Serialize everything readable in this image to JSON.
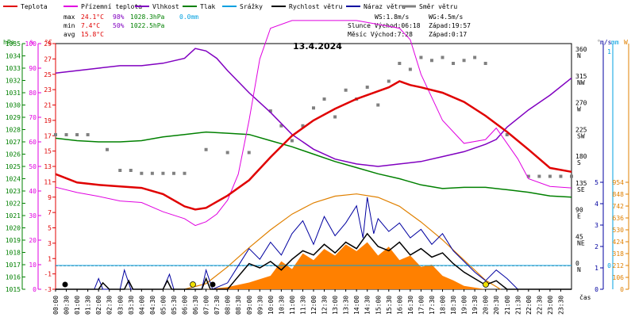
{
  "chart_data": {
    "type": "line",
    "date": "13.4.2024",
    "legend": [
      {
        "label": "Teplota",
        "color": "#e00000"
      },
      {
        "label": "Přízemní teplota",
        "color": "#e000e0"
      },
      {
        "label": "Vlhkost",
        "color": "#8000c0"
      },
      {
        "label": "Tlak",
        "color": "#008000"
      },
      {
        "label": "Srážky",
        "color": "#00a0e0"
      },
      {
        "label": "Rychlost větru",
        "color": "#000000"
      },
      {
        "label": "Náraz větru",
        "color": "#0000a0"
      },
      {
        "label": "Směr větru",
        "color": "#808080"
      }
    ],
    "stats": {
      "max_label": "max",
      "min_label": "min",
      "avg_label": "avg",
      "max_temp": "24.1°C",
      "max_hum": "98%",
      "max_press": "1028.3hPa",
      "max_rain": "0.0mm",
      "min_temp": "7.4°C",
      "min_hum": "50%",
      "min_press": "1022.5hPa",
      "avg_temp": "15.8°C"
    },
    "wind_info": {
      "ws": "WS:1.8m/s",
      "wg": "WG:4.5m/s"
    },
    "sun": {
      "rise": "Slunce Východ:06:18",
      "set": "Západ:19:57"
    },
    "moon": {
      "rise": "Měsíc  Východ:7:28",
      "set": "Západ:0:17"
    },
    "axes": {
      "hpa_unit": "hPa",
      "pct_unit": "%",
      "c_unit": "°C",
      "deg_unit": "°",
      "ms_unit": "m/s",
      "mm_unit": "mm",
      "w_unit": "W",
      "time_label": "čas",
      "hpa_ticks": [
        1015,
        1016,
        1017,
        1018,
        1019,
        1020,
        1021,
        1022,
        1023,
        1024,
        1025,
        1026,
        1027,
        1028,
        1029,
        1030,
        1031,
        1032,
        1033,
        1034,
        1035
      ],
      "pct_ticks": [
        0,
        10,
        20,
        30,
        40,
        50,
        60,
        70,
        80,
        90,
        100
      ],
      "c_ticks": [
        -3,
        -1,
        1,
        3,
        5,
        7,
        9,
        11,
        13,
        15,
        17,
        19,
        21,
        23,
        25,
        27,
        29
      ],
      "dir_ticks": [
        {
          "deg": 0,
          "label": "N"
        },
        {
          "deg": 45,
          "label": "NE"
        },
        {
          "deg": 90,
          "label": "E"
        },
        {
          "deg": 135,
          "label": "SE"
        },
        {
          "deg": 180,
          "label": "S"
        },
        {
          "deg": 225,
          "label": "SW"
        },
        {
          "deg": 270,
          "label": "W"
        },
        {
          "deg": 315,
          "label": "NW"
        },
        {
          "deg": 360,
          "label": "N"
        }
      ],
      "ms_ticks": [
        0,
        1,
        2,
        3,
        4,
        5
      ],
      "mm_ticks": [
        0,
        1
      ],
      "w_ticks": [
        0,
        106,
        212,
        318,
        424,
        530,
        636,
        742,
        848,
        954
      ],
      "time_ticks": [
        "00:00",
        "00:30",
        "01:00",
        "01:30",
        "02:00",
        "02:30",
        "03:00",
        "03:30",
        "04:00",
        "04:30",
        "05:00",
        "05:30",
        "06:00",
        "06:30",
        "07:00",
        "07:30",
        "08:00",
        "08:30",
        "09:00",
        "09:30",
        "10:00",
        "10:30",
        "11:00",
        "11:30",
        "12:00",
        "12:30",
        "13:00",
        "13:30",
        "14:00",
        "14:30",
        "15:00",
        "15:30",
        "16:00",
        "16:30",
        "17:00",
        "17:30",
        "18:00",
        "18:30",
        "19:00",
        "19:30",
        "20:00",
        "20:30",
        "21:00",
        "21:30",
        "22:00",
        "22:30",
        "23:00",
        "23:30"
      ]
    },
    "ranges": {
      "hpa": [
        1015,
        1035
      ],
      "pct": [
        0,
        100
      ],
      "c": [
        -3,
        29
      ],
      "deg": [
        0,
        360
      ],
      "ms": [
        0,
        5
      ],
      "w": [
        0,
        954
      ],
      "hours": [
        0,
        24
      ]
    },
    "series": {
      "temperature_c": [
        [
          0,
          12
        ],
        [
          1,
          10.9
        ],
        [
          2,
          10.6
        ],
        [
          3,
          10.4
        ],
        [
          4,
          10.2
        ],
        [
          5,
          9.4
        ],
        [
          6,
          7.8
        ],
        [
          6.5,
          7.4
        ],
        [
          7,
          7.6
        ],
        [
          7.5,
          8.4
        ],
        [
          8,
          9.2
        ],
        [
          9,
          11.2
        ],
        [
          10,
          14.2
        ],
        [
          11,
          17
        ],
        [
          12,
          19
        ],
        [
          13,
          20.5
        ],
        [
          14,
          21.8
        ],
        [
          15,
          22.8
        ],
        [
          15.5,
          23.3
        ],
        [
          16,
          24.1
        ],
        [
          16.5,
          23.6
        ],
        [
          17,
          23.3
        ],
        [
          18,
          22.6
        ],
        [
          19,
          21.4
        ],
        [
          20,
          19.6
        ],
        [
          21,
          17.5
        ],
        [
          22,
          15.2
        ],
        [
          23,
          12.8
        ],
        [
          24,
          12.3
        ]
      ],
      "ground_temperature_c": [
        [
          0,
          10.3
        ],
        [
          1,
          9.6
        ],
        [
          2,
          9.1
        ],
        [
          3,
          8.5
        ],
        [
          4,
          8.3
        ],
        [
          5,
          7.1
        ],
        [
          6,
          6.2
        ],
        [
          6.5,
          5.3
        ],
        [
          7,
          5.8
        ],
        [
          7.5,
          6.8
        ],
        [
          8,
          8.6
        ],
        [
          8.5,
          12
        ],
        [
          9,
          19
        ],
        [
          9.5,
          27
        ],
        [
          10,
          31
        ],
        [
          11,
          32
        ],
        [
          12,
          32
        ],
        [
          13,
          32
        ],
        [
          14,
          32
        ],
        [
          15,
          31.5
        ],
        [
          16,
          31
        ],
        [
          16.5,
          29.5
        ],
        [
          17,
          25
        ],
        [
          18,
          19
        ],
        [
          19,
          16
        ],
        [
          20,
          16.5
        ],
        [
          20.5,
          18
        ],
        [
          21,
          16
        ],
        [
          21.5,
          14
        ],
        [
          22,
          11.4
        ],
        [
          23,
          10.4
        ],
        [
          24,
          10.2
        ]
      ],
      "humidity_pct": [
        [
          0,
          88
        ],
        [
          1,
          89
        ],
        [
          2,
          90
        ],
        [
          3,
          91
        ],
        [
          4,
          91
        ],
        [
          5,
          92
        ],
        [
          6,
          94
        ],
        [
          6.5,
          98
        ],
        [
          7,
          97
        ],
        [
          7.5,
          94
        ],
        [
          8,
          89
        ],
        [
          9,
          80
        ],
        [
          10,
          72
        ],
        [
          11,
          63
        ],
        [
          12,
          57
        ],
        [
          13,
          53
        ],
        [
          14,
          51
        ],
        [
          15,
          50
        ],
        [
          16,
          51
        ],
        [
          17,
          52
        ],
        [
          18,
          54
        ],
        [
          19,
          56
        ],
        [
          20,
          59
        ],
        [
          20.5,
          61
        ],
        [
          21,
          66
        ],
        [
          22,
          73
        ],
        [
          23,
          79
        ],
        [
          24,
          86
        ]
      ],
      "pressure_hpa": [
        [
          0,
          1027.3
        ],
        [
          1,
          1027.1
        ],
        [
          2,
          1027
        ],
        [
          3,
          1027
        ],
        [
          4,
          1027.1
        ],
        [
          5,
          1027.4
        ],
        [
          6,
          1027.6
        ],
        [
          7,
          1027.8
        ],
        [
          8,
          1027.7
        ],
        [
          9,
          1027.6
        ],
        [
          10,
          1027.1
        ],
        [
          11,
          1026.6
        ],
        [
          12,
          1026
        ],
        [
          13,
          1025.4
        ],
        [
          14,
          1024.9
        ],
        [
          15,
          1024.4
        ],
        [
          16,
          1024
        ],
        [
          17,
          1023.5
        ],
        [
          18,
          1023.2
        ],
        [
          19,
          1023.3
        ],
        [
          20,
          1023.3
        ],
        [
          21,
          1023.1
        ],
        [
          22,
          1022.9
        ],
        [
          23,
          1022.6
        ],
        [
          24,
          1022.5
        ]
      ],
      "rain_mm": [
        [
          0,
          0
        ],
        [
          24,
          0
        ]
      ],
      "wind_speed_ms": [
        [
          0,
          0
        ],
        [
          2,
          0
        ],
        [
          2.2,
          0.3
        ],
        [
          2.5,
          0
        ],
        [
          3.2,
          0
        ],
        [
          3.4,
          0.4
        ],
        [
          3.6,
          0
        ],
        [
          5,
          0
        ],
        [
          5.2,
          0.4
        ],
        [
          5.4,
          0
        ],
        [
          6.8,
          0
        ],
        [
          7,
          0.5
        ],
        [
          7.2,
          0
        ],
        [
          8,
          0
        ],
        [
          8.5,
          0.6
        ],
        [
          9,
          1.2
        ],
        [
          9.5,
          1
        ],
        [
          10,
          1.3
        ],
        [
          10.5,
          0.9
        ],
        [
          11,
          1.4
        ],
        [
          11.5,
          1.8
        ],
        [
          12,
          1.6
        ],
        [
          12.5,
          2.1
        ],
        [
          13,
          1.7
        ],
        [
          13.5,
          2.2
        ],
        [
          14,
          1.9
        ],
        [
          14.5,
          2.6
        ],
        [
          15,
          2
        ],
        [
          15.5,
          1.8
        ],
        [
          16,
          2.2
        ],
        [
          16.5,
          1.6
        ],
        [
          17,
          1.9
        ],
        [
          17.5,
          1.5
        ],
        [
          18,
          1.7
        ],
        [
          18.5,
          1.2
        ],
        [
          19,
          0.8
        ],
        [
          19.5,
          0.5
        ],
        [
          20,
          0.2
        ],
        [
          20.5,
          0.4
        ],
        [
          21,
          0
        ],
        [
          24,
          0
        ]
      ],
      "wind_gust_ms": [
        [
          0,
          0
        ],
        [
          1.8,
          0
        ],
        [
          2,
          0.5
        ],
        [
          2.2,
          0
        ],
        [
          3,
          0
        ],
        [
          3.2,
          0.9
        ],
        [
          3.5,
          0
        ],
        [
          5,
          0
        ],
        [
          5.3,
          0.7
        ],
        [
          5.5,
          0
        ],
        [
          6.8,
          0
        ],
        [
          7,
          0.9
        ],
        [
          7.3,
          0
        ],
        [
          8,
          0.3
        ],
        [
          8.5,
          1.1
        ],
        [
          9,
          1.9
        ],
        [
          9.5,
          1.4
        ],
        [
          10,
          2.2
        ],
        [
          10.5,
          1.6
        ],
        [
          11,
          2.6
        ],
        [
          11.5,
          3.2
        ],
        [
          12,
          2.1
        ],
        [
          12.5,
          3.4
        ],
        [
          13,
          2.5
        ],
        [
          13.5,
          3.1
        ],
        [
          14,
          3.9
        ],
        [
          14.3,
          2.4
        ],
        [
          14.5,
          4.3
        ],
        [
          14.8,
          2.6
        ],
        [
          15,
          3.3
        ],
        [
          15.5,
          2.7
        ],
        [
          16,
          3.1
        ],
        [
          16.5,
          2.4
        ],
        [
          17,
          2.8
        ],
        [
          17.5,
          2.1
        ],
        [
          18,
          2.6
        ],
        [
          18.5,
          1.8
        ],
        [
          19,
          1.3
        ],
        [
          19.5,
          0.8
        ],
        [
          20,
          0.4
        ],
        [
          20.5,
          0.9
        ],
        [
          21,
          0.5
        ],
        [
          21.5,
          0
        ],
        [
          24,
          0
        ]
      ],
      "solar_w": [
        [
          0,
          0
        ],
        [
          7,
          0
        ],
        [
          8,
          20
        ],
        [
          9,
          60
        ],
        [
          10,
          120
        ],
        [
          10.5,
          250
        ],
        [
          11,
          180
        ],
        [
          11.5,
          320
        ],
        [
          12,
          260
        ],
        [
          12.5,
          360
        ],
        [
          13,
          300
        ],
        [
          13.5,
          400
        ],
        [
          14,
          340
        ],
        [
          14.5,
          420
        ],
        [
          15,
          300
        ],
        [
          15.5,
          380
        ],
        [
          16,
          260
        ],
        [
          16.5,
          300
        ],
        [
          17,
          200
        ],
        [
          17.5,
          220
        ],
        [
          18,
          120
        ],
        [
          18.5,
          80
        ],
        [
          19,
          30
        ],
        [
          20,
          0
        ],
        [
          24,
          0
        ]
      ],
      "solar_theoretical_w": [
        [
          6,
          0
        ],
        [
          7,
          50
        ],
        [
          8,
          200
        ],
        [
          9,
          370
        ],
        [
          10,
          530
        ],
        [
          11,
          670
        ],
        [
          12,
          770
        ],
        [
          13,
          830
        ],
        [
          14,
          850
        ],
        [
          15,
          820
        ],
        [
          16,
          740
        ],
        [
          17,
          600
        ],
        [
          18,
          440
        ],
        [
          19,
          260
        ],
        [
          20,
          80
        ],
        [
          20.7,
          0
        ]
      ],
      "wind_direction_deg": [
        [
          0,
          220
        ],
        [
          0.5,
          220
        ],
        [
          1,
          220
        ],
        [
          1.5,
          220
        ],
        [
          2.4,
          195
        ],
        [
          3,
          160
        ],
        [
          3.5,
          160
        ],
        [
          4,
          155
        ],
        [
          4.5,
          155
        ],
        [
          5,
          155
        ],
        [
          5.5,
          155
        ],
        [
          6,
          155
        ],
        [
          7,
          195
        ],
        [
          8,
          190
        ],
        [
          9,
          190
        ],
        [
          10,
          260
        ],
        [
          10.5,
          235
        ],
        [
          11,
          210
        ],
        [
          11.5,
          235
        ],
        [
          12,
          265
        ],
        [
          12.5,
          280
        ],
        [
          13,
          250
        ],
        [
          13.5,
          295
        ],
        [
          14,
          280
        ],
        [
          14.5,
          300
        ],
        [
          15,
          270
        ],
        [
          15.5,
          310
        ],
        [
          16,
          340
        ],
        [
          16.5,
          330
        ],
        [
          17,
          350
        ],
        [
          17.5,
          345
        ],
        [
          18,
          350
        ],
        [
          18.5,
          340
        ],
        [
          19,
          345
        ],
        [
          19.5,
          350
        ],
        [
          20,
          340
        ],
        [
          21,
          220
        ],
        [
          22,
          150
        ],
        [
          22.5,
          150
        ],
        [
          23,
          150
        ],
        [
          23.5,
          150
        ],
        [
          24,
          150
        ]
      ]
    }
  }
}
